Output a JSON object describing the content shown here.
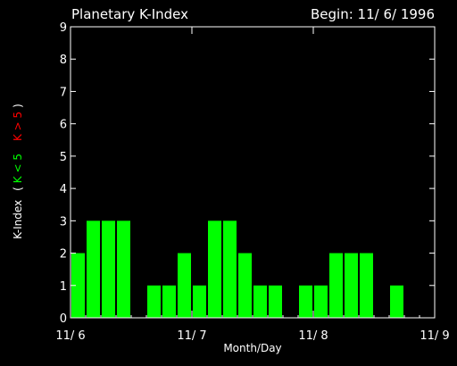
{
  "chart_data": {
    "type": "bar",
    "title": "Planetary K-Index",
    "subtitle": "Begin: 11/ 6/ 1996",
    "xlabel": "Month/Day",
    "ylabel": {
      "main": "K-Index",
      "open_paren": "(",
      "green": "K < 5",
      "red": "K > 5",
      "close_paren": ")"
    },
    "ylim": [
      0,
      9
    ],
    "yticks": [
      "0",
      "1",
      "2",
      "3",
      "4",
      "5",
      "6",
      "7",
      "8",
      "9"
    ],
    "xticks": [
      "11/ 6",
      "11/ 7",
      "11/ 8",
      "11/ 9"
    ],
    "bar_slots_per_day": 8,
    "values": [
      2,
      3,
      3,
      3,
      0,
      1,
      1,
      2,
      1,
      3,
      3,
      2,
      1,
      1,
      0,
      1,
      1,
      2,
      2,
      2,
      0,
      1,
      0,
      0
    ],
    "grid": false,
    "colors": {
      "background": "#000000",
      "axes": "#ffffff",
      "text": "#ffffff",
      "bar_low": "#00ff00",
      "bar_high": "#ff0000"
    }
  }
}
